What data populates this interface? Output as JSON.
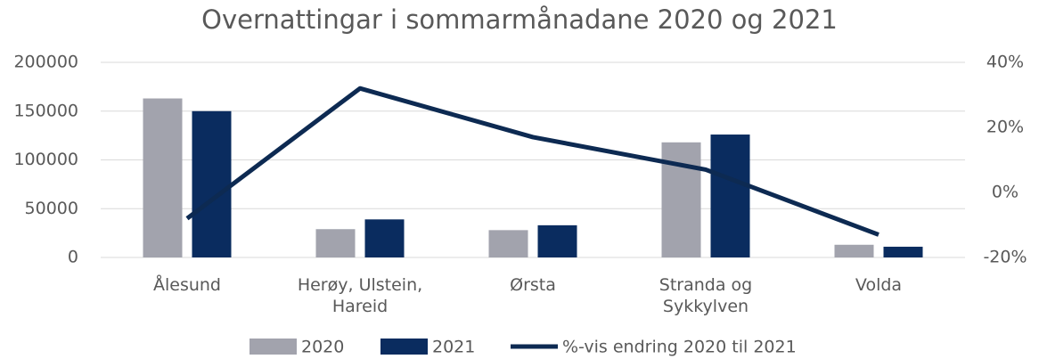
{
  "chart_data": {
    "type": "bar_line",
    "title": "Overnattingar i sommarmånadane 2020 og 2021",
    "categories": [
      "Ålesund",
      "Herøy, Ulstein,\nHareid",
      "Ørsta",
      "Stranda og\nSykkylven",
      "Volda"
    ],
    "series": [
      {
        "name": "2020",
        "type": "bar",
        "color": "#a2a3ad",
        "values": [
          163000,
          29000,
          28000,
          118000,
          13000
        ]
      },
      {
        "name": "2021",
        "type": "bar",
        "color": "#0a2c5f",
        "values": [
          150000,
          39000,
          33000,
          126000,
          11000
        ]
      },
      {
        "name": "%-vis endring 2020 til 2021",
        "type": "line",
        "axis": "y2",
        "color": "#0d2a52",
        "values": [
          -8,
          32,
          17,
          7,
          -13
        ]
      }
    ],
    "ylim": [
      0,
      200000
    ],
    "yticks": [
      0,
      50000,
      100000,
      150000,
      200000
    ],
    "y2lim": [
      -20,
      40
    ],
    "y2ticks": [
      {
        "value": -20,
        "label": "-20%"
      },
      {
        "value": 0,
        "label": "0%"
      },
      {
        "value": 20,
        "label": "20%"
      },
      {
        "value": 40,
        "label": "40%"
      }
    ],
    "grid": true,
    "legend": "bottom"
  }
}
